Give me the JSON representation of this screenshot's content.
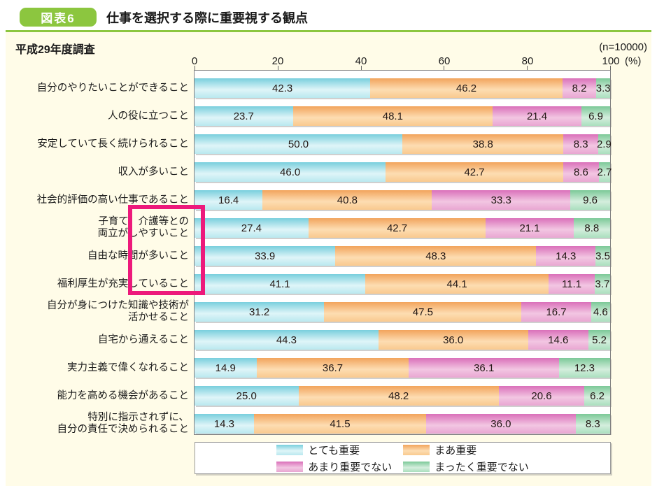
{
  "header": {
    "badge_label": "図表6",
    "title": "仕事を選択する際に重要視する観点"
  },
  "panel": {
    "survey_label": "平成29年度調査",
    "sample_size": "(n=10000)"
  },
  "colors": {
    "accent_green": "#8cc63f",
    "highlight_pink": "#ed197b",
    "panel_bg": "#fffce8",
    "series_cyan": "#7fd2df",
    "series_orange": "#f5ab63",
    "series_magenta": "#dd7ec0",
    "series_green": "#83cd9e"
  },
  "chart_data": {
    "type": "bar",
    "stacked": true,
    "orientation": "horizontal",
    "title": "仕事を選択する際に重要視する観点",
    "axis": {
      "ticks": [
        0,
        20,
        40,
        60,
        80,
        100
      ],
      "unit_label": "(%)",
      "xlim": [
        0,
        100
      ],
      "grid": false
    },
    "legend_position": "bottom",
    "categories": [
      [
        "自分のやりたいことができること"
      ],
      [
        "人の役に立つこと"
      ],
      [
        "安定していて長く続けられること"
      ],
      [
        "収入が多いこと"
      ],
      [
        "社会的評価の高い仕事であること"
      ],
      [
        "子育て、介護等との",
        "両立がしやすいこと"
      ],
      [
        "自由な時間が多いこと"
      ],
      [
        "福利厚生が充実していること"
      ],
      [
        "自分が身につけた知識や技術が",
        "活かせること"
      ],
      [
        "自宅から通えること"
      ],
      [
        "実力主義で偉くなれること"
      ],
      [
        "能力を高める機会があること"
      ],
      [
        "特別に指示されずに、",
        "自分の責任で決められること"
      ]
    ],
    "highlighted_category_indices": [
      5,
      6,
      7
    ],
    "series": [
      {
        "name": "とても重要",
        "color": "#7fd2df",
        "values": [
          42.3,
          23.7,
          50.0,
          46.0,
          16.4,
          27.4,
          33.9,
          41.1,
          31.2,
          44.3,
          14.9,
          25.0,
          14.3
        ]
      },
      {
        "name": "まあ重要",
        "color": "#f5ab63",
        "values": [
          46.2,
          48.1,
          38.8,
          42.7,
          40.8,
          42.7,
          48.3,
          44.1,
          47.5,
          36.0,
          36.7,
          48.2,
          41.5
        ]
      },
      {
        "name": "あまり重要でない",
        "color": "#dd7ec0",
        "values": [
          8.2,
          21.4,
          8.3,
          8.6,
          33.3,
          21.1,
          14.3,
          11.1,
          16.7,
          14.6,
          36.1,
          20.6,
          36.0
        ]
      },
      {
        "name": "まったく重要でない",
        "color": "#83cd9e",
        "values": [
          3.3,
          6.9,
          2.9,
          2.7,
          9.6,
          8.8,
          3.5,
          3.7,
          4.6,
          5.2,
          12.3,
          6.2,
          8.3
        ]
      }
    ]
  }
}
